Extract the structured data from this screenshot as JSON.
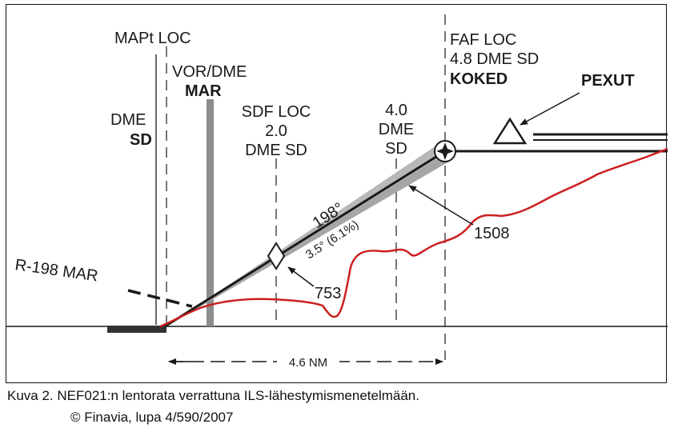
{
  "figure": {
    "labels": {
      "mapt_loc": "MAPt LOC",
      "vor_dme": "VOR/DME",
      "mar": "MAR",
      "dme_sd_dme": "DME",
      "dme_sd_sd": "SD",
      "sdf_loc_1": "SDF LOC",
      "sdf_loc_2": "2.0",
      "sdf_loc_3": "DME SD",
      "dme40_1": "4.0",
      "dme40_2": "DME",
      "dme40_3": "SD",
      "faf_1": "FAF LOC",
      "faf_2": "4.8 DME SD",
      "faf_3": "KOKED",
      "pexut": "PEXUT",
      "r198": "R-198 MAR",
      "course": "198°",
      "glide": "3.5° (6.1%)",
      "alt_753": "753",
      "alt_1508": "1508",
      "distance": "4.6 NM"
    },
    "colors": {
      "terrain": "#cc1f1f",
      "line": "#1a1a1a",
      "shade": "#a6a6a6",
      "mar_bar": "#8c8c8c"
    }
  },
  "caption": {
    "line1": "Kuva 2. NEF021:n lentorata verrattuna ILS-lähestymismenetelmään.",
    "line2": "© Finavia, lupa 4/590/2007"
  }
}
